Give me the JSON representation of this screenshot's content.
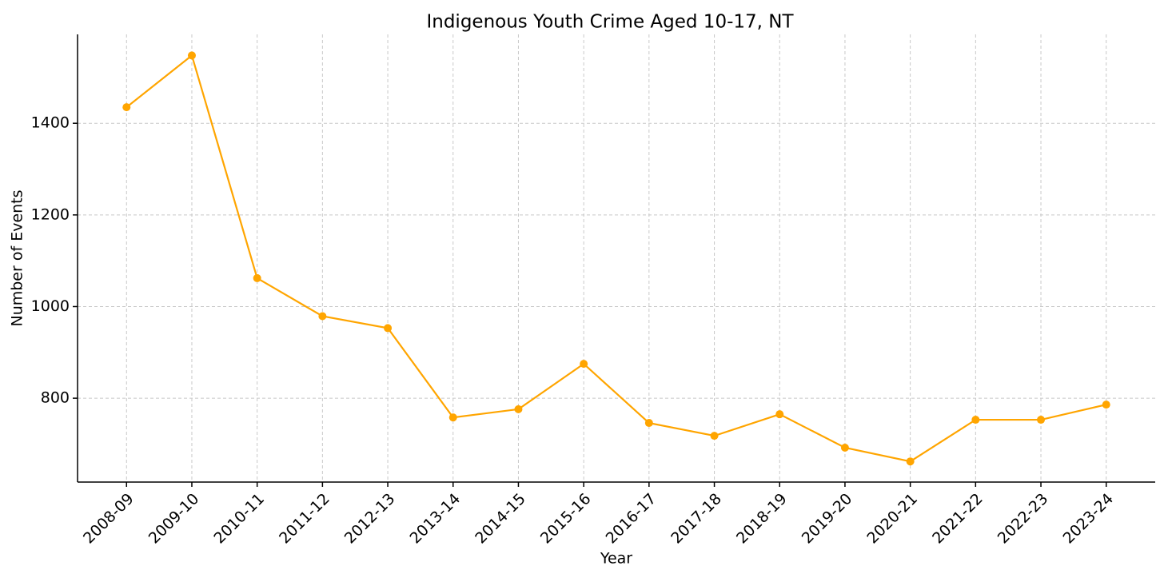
{
  "chart_data": {
    "type": "line",
    "title": "Indigenous Youth Crime Aged 10-17, NT",
    "x_label": "Year",
    "y_label": "Number of Events",
    "categories": [
      "2008-09",
      "2009-10",
      "2010-11",
      "2011-12",
      "2012-13",
      "2013-14",
      "2014-15",
      "2015-16",
      "2016-17",
      "2017-18",
      "2018-19",
      "2019-20",
      "2020-21",
      "2021-22",
      "2022-23",
      "2023-24"
    ],
    "series": [
      {
        "name": "Number of Events",
        "color": "#ffa500",
        "values": [
          1435,
          1548,
          1062,
          979,
          953,
          758,
          776,
          875,
          746,
          718,
          765,
          692,
          662,
          753,
          753,
          786
        ]
      }
    ],
    "ylim": [
      617,
      1594
    ],
    "yticks": [
      800,
      1000,
      1200,
      1400
    ],
    "grid": true
  }
}
